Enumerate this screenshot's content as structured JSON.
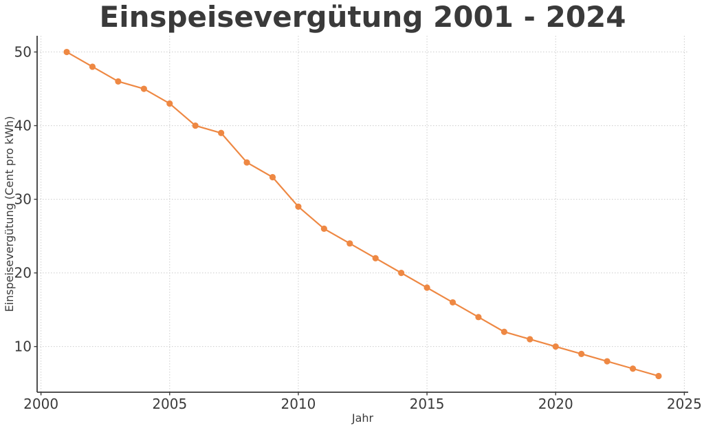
{
  "chart_data": {
    "type": "line",
    "title": "Einspeisevergütung 2001 - 2024",
    "xlabel": "Jahr",
    "ylabel": "Einspeisevergütung (Cent pro kWh)",
    "series": [
      {
        "name": "Einspeisevergütung",
        "x": [
          2001,
          2002,
          2003,
          2004,
          2005,
          2006,
          2007,
          2008,
          2009,
          2010,
          2011,
          2012,
          2013,
          2014,
          2015,
          2016,
          2017,
          2018,
          2019,
          2020,
          2021,
          2022,
          2023,
          2024
        ],
        "values": [
          50,
          48,
          46,
          45,
          43,
          40,
          39,
          35,
          33,
          29,
          26,
          24,
          22,
          20,
          18,
          16,
          14,
          12,
          11,
          10,
          9,
          8,
          7,
          6
        ]
      }
    ],
    "xticks": [
      2000,
      2005,
      2010,
      2015,
      2020,
      2025
    ],
    "yticks": [
      10,
      20,
      30,
      40,
      50
    ],
    "xlim": [
      1999.85,
      2025.15
    ],
    "ylim": [
      3.8,
      52.2
    ],
    "grid": true,
    "legend": "none",
    "colors": {
      "line": "#ee8843",
      "marker": "#ee8843",
      "grid": "#cccccc",
      "spine": "#3a3a3a",
      "text": "#3a3a3a",
      "background": "#ffffff"
    }
  }
}
